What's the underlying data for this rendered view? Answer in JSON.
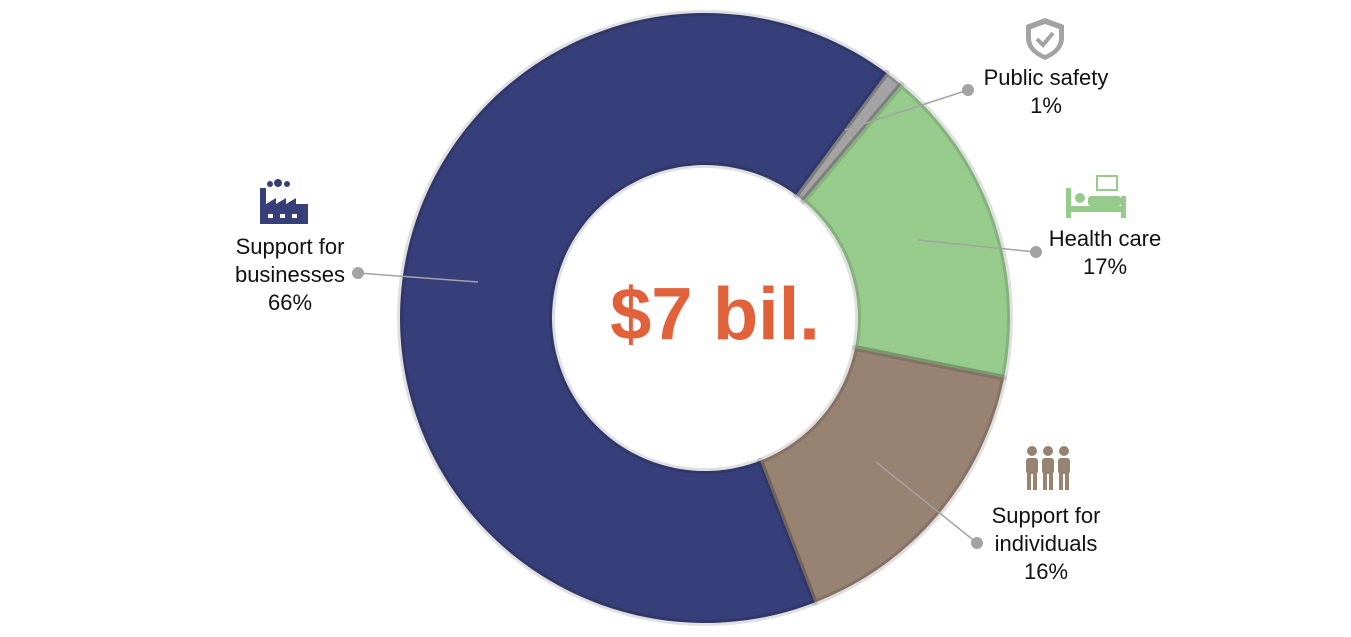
{
  "chart_data": {
    "type": "donut",
    "center_label": "$7 bil.",
    "categories": [
      "Public safety",
      "Health care",
      "Support for individuals",
      "Support for businesses"
    ],
    "values": [
      1,
      17,
      16,
      66
    ],
    "value_labels": [
      "1%",
      "17%",
      "16%",
      "66%"
    ],
    "colors": [
      "#a3a3a3",
      "#96cb8c",
      "#988272",
      "#373f7a"
    ]
  }
}
